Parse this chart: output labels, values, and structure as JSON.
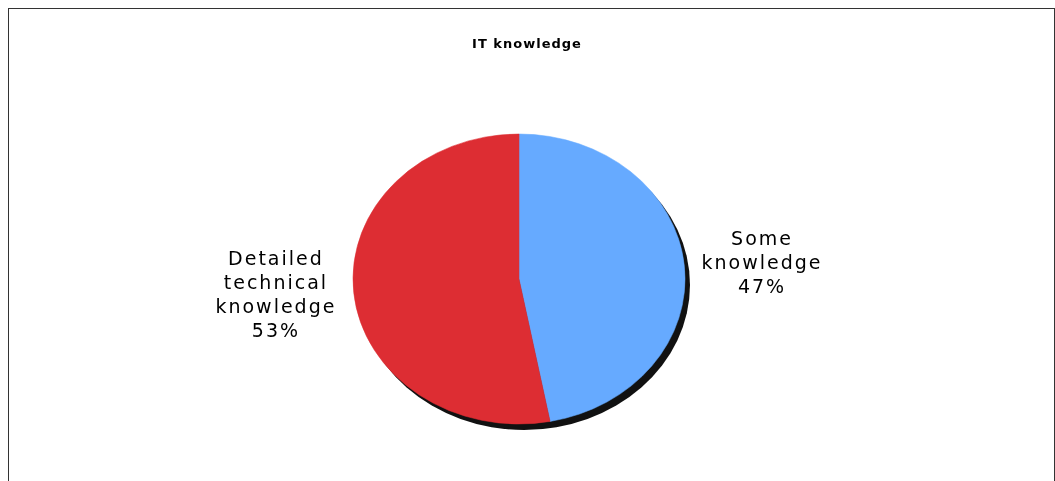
{
  "chart_data": {
    "type": "pie",
    "title": "IT knowledge",
    "categories": [
      "Some knowledge",
      "Detailed technical knowledge"
    ],
    "values": [
      47,
      53
    ],
    "colors": [
      "#66aaff",
      "#dd2d33"
    ],
    "value_labels": [
      "47%",
      "53%"
    ]
  }
}
